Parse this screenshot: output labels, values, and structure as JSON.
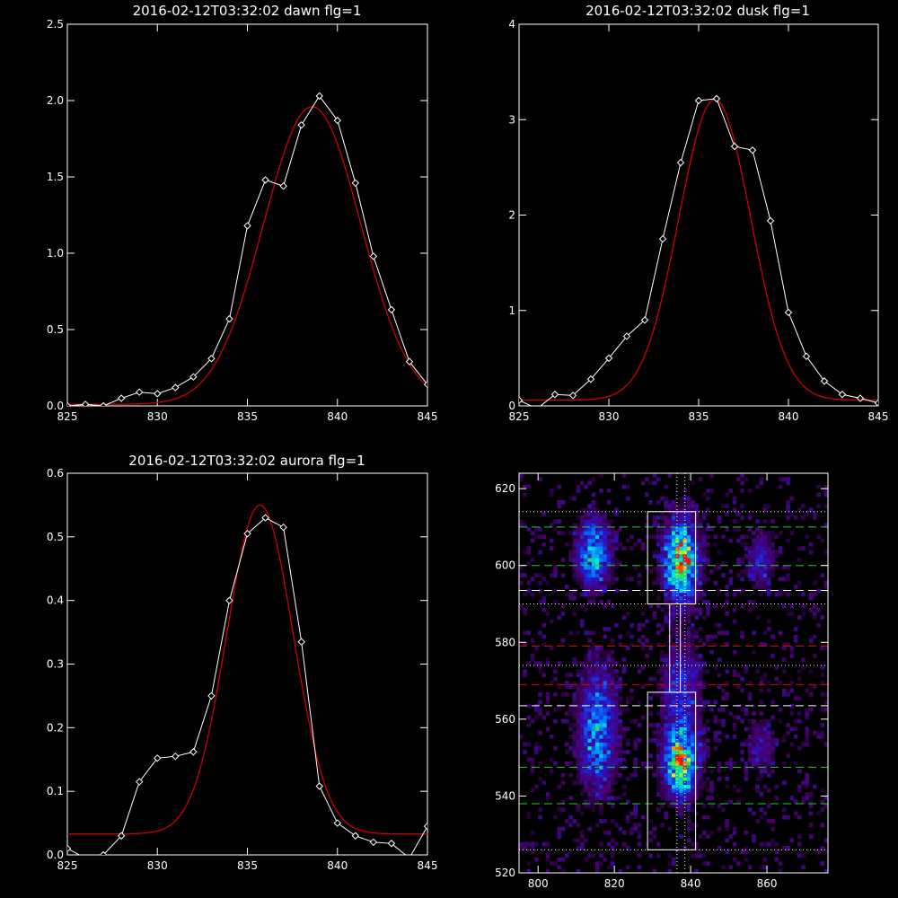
{
  "colors": {
    "background": "#000000",
    "observed": "#ffffff",
    "fit": "#cc0000",
    "white_dash": "#ffffff",
    "red_dash": "#dd0000",
    "green_dash": "#22cc22"
  },
  "chart_data": [
    {
      "type": "line",
      "title": "2016-02-12T03:32:02 dawn flg=1",
      "xlim": [
        825,
        845
      ],
      "ylim": [
        0,
        2.5
      ],
      "xticks": [
        "825",
        "830",
        "835",
        "840",
        "845"
      ],
      "yticks": [
        "0.0",
        "0.5",
        "1.0",
        "1.5",
        "2.0",
        "2.5"
      ],
      "series": [
        {
          "role": "observed",
          "marker": "diamond",
          "x": [
            825,
            826,
            827,
            828,
            829,
            830,
            831,
            832,
            833,
            834,
            835,
            836,
            837,
            838,
            839,
            840,
            841,
            842,
            843,
            844,
            845
          ],
          "y": [
            0.0,
            0.01,
            0.0,
            0.05,
            0.09,
            0.08,
            0.12,
            0.19,
            0.31,
            0.57,
            1.18,
            1.48,
            1.44,
            1.84,
            2.03,
            1.87,
            1.46,
            0.98,
            0.63,
            0.29,
            0.14
          ]
        },
        {
          "role": "fit",
          "gauss": {
            "amp": 1.95,
            "mu": 838.6,
            "sigma": 2.7,
            "base": 0.01
          }
        }
      ]
    },
    {
      "type": "line",
      "title": "2016-02-12T03:32:02 dusk flg=1",
      "xlim": [
        825,
        845
      ],
      "ylim": [
        0,
        4
      ],
      "xticks": [
        "825",
        "830",
        "835",
        "840",
        "845"
      ],
      "yticks": [
        "0",
        "1",
        "2",
        "3",
        "4"
      ],
      "series": [
        {
          "role": "observed",
          "marker": "diamond",
          "x": [
            825,
            826,
            827,
            828,
            829,
            830,
            831,
            832,
            833,
            834,
            835,
            836,
            837,
            838,
            839,
            840,
            841,
            842,
            843,
            844,
            845
          ],
          "y": [
            0.06,
            -0.03,
            0.12,
            0.11,
            0.28,
            0.5,
            0.73,
            0.9,
            1.75,
            2.55,
            3.2,
            3.22,
            2.72,
            2.68,
            1.94,
            0.98,
            0.52,
            0.26,
            0.12,
            0.08,
            0.03
          ]
        },
        {
          "role": "fit",
          "gauss": {
            "amp": 3.15,
            "mu": 835.9,
            "sigma": 2.0,
            "base": 0.06
          }
        }
      ]
    },
    {
      "type": "line",
      "title": "2016-02-12T03:32:02 aurora flg=1",
      "xlim": [
        825,
        845
      ],
      "ylim": [
        0,
        0.6
      ],
      "xticks": [
        "825",
        "830",
        "835",
        "840",
        "845"
      ],
      "yticks": [
        "0.0",
        "0.1",
        "0.2",
        "0.3",
        "0.4",
        "0.5",
        "0.6"
      ],
      "series": [
        {
          "role": "observed",
          "marker": "diamond",
          "x": [
            825,
            826,
            827,
            828,
            829,
            830,
            831,
            832,
            833,
            834,
            835,
            836,
            837,
            838,
            839,
            840,
            841,
            842,
            843,
            844,
            845
          ],
          "y": [
            0.01,
            -0.005,
            0.0,
            0.03,
            0.115,
            0.152,
            0.155,
            0.162,
            0.25,
            0.4,
            0.505,
            0.53,
            0.515,
            0.335,
            0.108,
            0.05,
            0.03,
            0.02,
            0.018,
            -0.005,
            0.045
          ]
        },
        {
          "role": "fit",
          "gauss": {
            "amp": 0.517,
            "mu": 835.7,
            "sigma": 1.85,
            "base": 0.033
          }
        }
      ]
    },
    {
      "type": "heatmap",
      "xlim": [
        795,
        876
      ],
      "ylim": [
        520,
        624
      ],
      "xticks": [
        "800",
        "820",
        "840",
        "860"
      ],
      "yticks": [
        "520",
        "540",
        "560",
        "580",
        "600",
        "620"
      ],
      "blobs": [
        {
          "x": 814,
          "y": 603,
          "sx": 3.0,
          "sy": 6,
          "amp": 0.62
        },
        {
          "x": 815,
          "y": 557,
          "sx": 3.5,
          "sy": 11,
          "amp": 0.5
        },
        {
          "x": 837,
          "y": 601,
          "sx": 3.0,
          "sy": 7,
          "amp": 0.95
        },
        {
          "x": 837,
          "y": 548,
          "sx": 3.0,
          "sy": 6,
          "amp": 0.85
        },
        {
          "x": 837,
          "y": 567,
          "sx": 3.5,
          "sy": 9,
          "amp": 0.35
        },
        {
          "x": 858,
          "y": 601,
          "sx": 2.5,
          "sy": 5,
          "amp": 0.3
        },
        {
          "x": 858,
          "y": 552,
          "sx": 2.5,
          "sy": 5,
          "amp": 0.25
        }
      ],
      "boxes": [
        {
          "x0": 828.7,
          "x1": 841.3,
          "y0": 590,
          "y1": 614
        },
        {
          "x0": 834.5,
          "x1": 837.3,
          "y0": 567,
          "y1": 590
        },
        {
          "x0": 828.7,
          "x1": 841.3,
          "y0": 526,
          "y1": 567
        }
      ],
      "hlines": [
        {
          "y": 614,
          "style": "dotted",
          "color": "white"
        },
        {
          "y": 610,
          "style": "dashed",
          "color": "green"
        },
        {
          "y": 600,
          "style": "dashed",
          "color": "green"
        },
        {
          "y": 593.5,
          "style": "dashed",
          "color": "white"
        },
        {
          "y": 590,
          "style": "dotted",
          "color": "white"
        },
        {
          "y": 579,
          "style": "dashed",
          "color": "red"
        },
        {
          "y": 574,
          "style": "dotted",
          "color": "white"
        },
        {
          "y": 569,
          "style": "dashed",
          "color": "red"
        },
        {
          "y": 563.5,
          "style": "dashed",
          "color": "white"
        },
        {
          "y": 547.5,
          "style": "dashed",
          "color": "green"
        },
        {
          "y": 538,
          "style": "dashed",
          "color": "green"
        },
        {
          "y": 526,
          "style": "dotted",
          "color": "white"
        }
      ],
      "vlines": [
        {
          "x": 836.4,
          "style": "dotted",
          "color": "white"
        },
        {
          "x": 838.5,
          "style": "dotted",
          "color": "white"
        }
      ]
    }
  ]
}
